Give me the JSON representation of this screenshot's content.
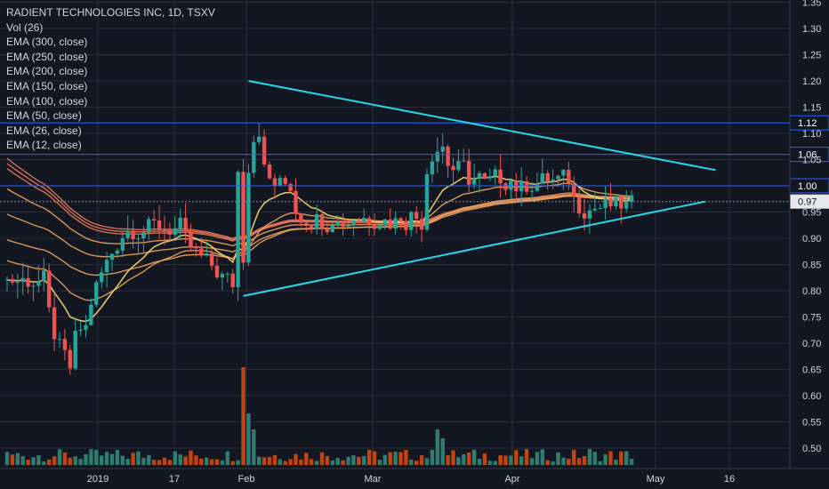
{
  "legend": {
    "title": "RADIENT TECHNOLOGIES INC, 1D, TSXV",
    "items": [
      "Vol (26)",
      "EMA (300, close)",
      "EMA (250, close)",
      "EMA (200, close)",
      "EMA (150, close)",
      "EMA (100, close)",
      "EMA (50, close)",
      "EMA (26, close)",
      "EMA (12, close)"
    ]
  },
  "colors": {
    "background": "#131722",
    "grid": "#2a2e39",
    "axis_text": "#d1d4dc",
    "up": "#26a69a",
    "down": "#ef5350",
    "vol_up": "#2e7d6f",
    "vol_down": "#c2440f",
    "trendline": "#27d8e8",
    "hline": "#2962ff",
    "ema_fast": "#f5d76e",
    "ema_mid": "#f0a45a",
    "ema_slow": "#e8795a"
  },
  "chart_data": {
    "type": "candlestick",
    "y_axis": {
      "ticks": [
        "0.50",
        "0.55",
        "0.60",
        "0.65",
        "0.70",
        "0.75",
        "0.80",
        "0.85",
        "0.90",
        "0.95",
        "1.00",
        "1.05",
        "1.10",
        "1.15",
        "1.20",
        "1.25",
        "1.30",
        "1.35"
      ],
      "range": [
        0.47,
        1.35
      ]
    },
    "x_axis": {
      "ticks": [
        {
          "label": "2019",
          "pos": 110
        },
        {
          "label": "17",
          "pos": 196
        },
        {
          "label": "Feb",
          "pos": 277
        },
        {
          "label": "Mar",
          "pos": 419
        },
        {
          "label": "Apr",
          "pos": 576
        },
        {
          "label": "May",
          "pos": 737
        },
        {
          "label": "16",
          "pos": 820
        }
      ]
    },
    "horizontal_lines": [
      {
        "value": 1.12,
        "label": "1.12"
      },
      {
        "value": 1.06,
        "label": "1.06"
      },
      {
        "value": 1.0,
        "label": "1.00"
      }
    ],
    "last_price": {
      "value": 0.97,
      "label": "0.97"
    },
    "trendlines": [
      {
        "from": {
          "day": 46,
          "price": 1.2
        },
        "to": {
          "day": 135,
          "price": 1.03
        }
      },
      {
        "from": {
          "day": 45,
          "price": 0.79
        },
        "to": {
          "day": 133,
          "price": 0.97
        }
      }
    ],
    "ema_labels": [
      "EMA 300",
      "EMA 250",
      "EMA 200",
      "EMA 150",
      "EMA 100",
      "EMA 50",
      "EMA 26",
      "EMA 12"
    ]
  }
}
